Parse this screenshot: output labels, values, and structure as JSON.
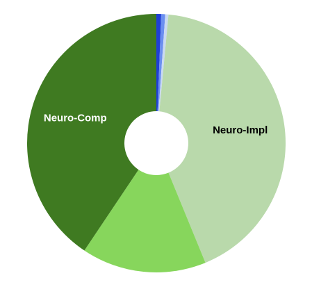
{
  "chart_data": {
    "type": "pie",
    "donut": true,
    "title": "",
    "slices": [
      {
        "label": "",
        "value": 0.6,
        "color": "#1f3fd6"
      },
      {
        "label": "",
        "value": 0.5,
        "color": "#6b8ff0"
      },
      {
        "label": "",
        "value": 0.4,
        "color": "#c9d9f2"
      },
      {
        "label": "Neuro-Impl",
        "value": 42.3,
        "color": "#b9d9ab",
        "label_color": "#000000"
      },
      {
        "label": "",
        "value": 15.6,
        "color": "#87d65c",
        "label_color": "#000000"
      },
      {
        "label": "Neuro-Comp",
        "value": 40.6,
        "color": "#3f7a21",
        "label_color": "#ffffff"
      }
    ]
  }
}
